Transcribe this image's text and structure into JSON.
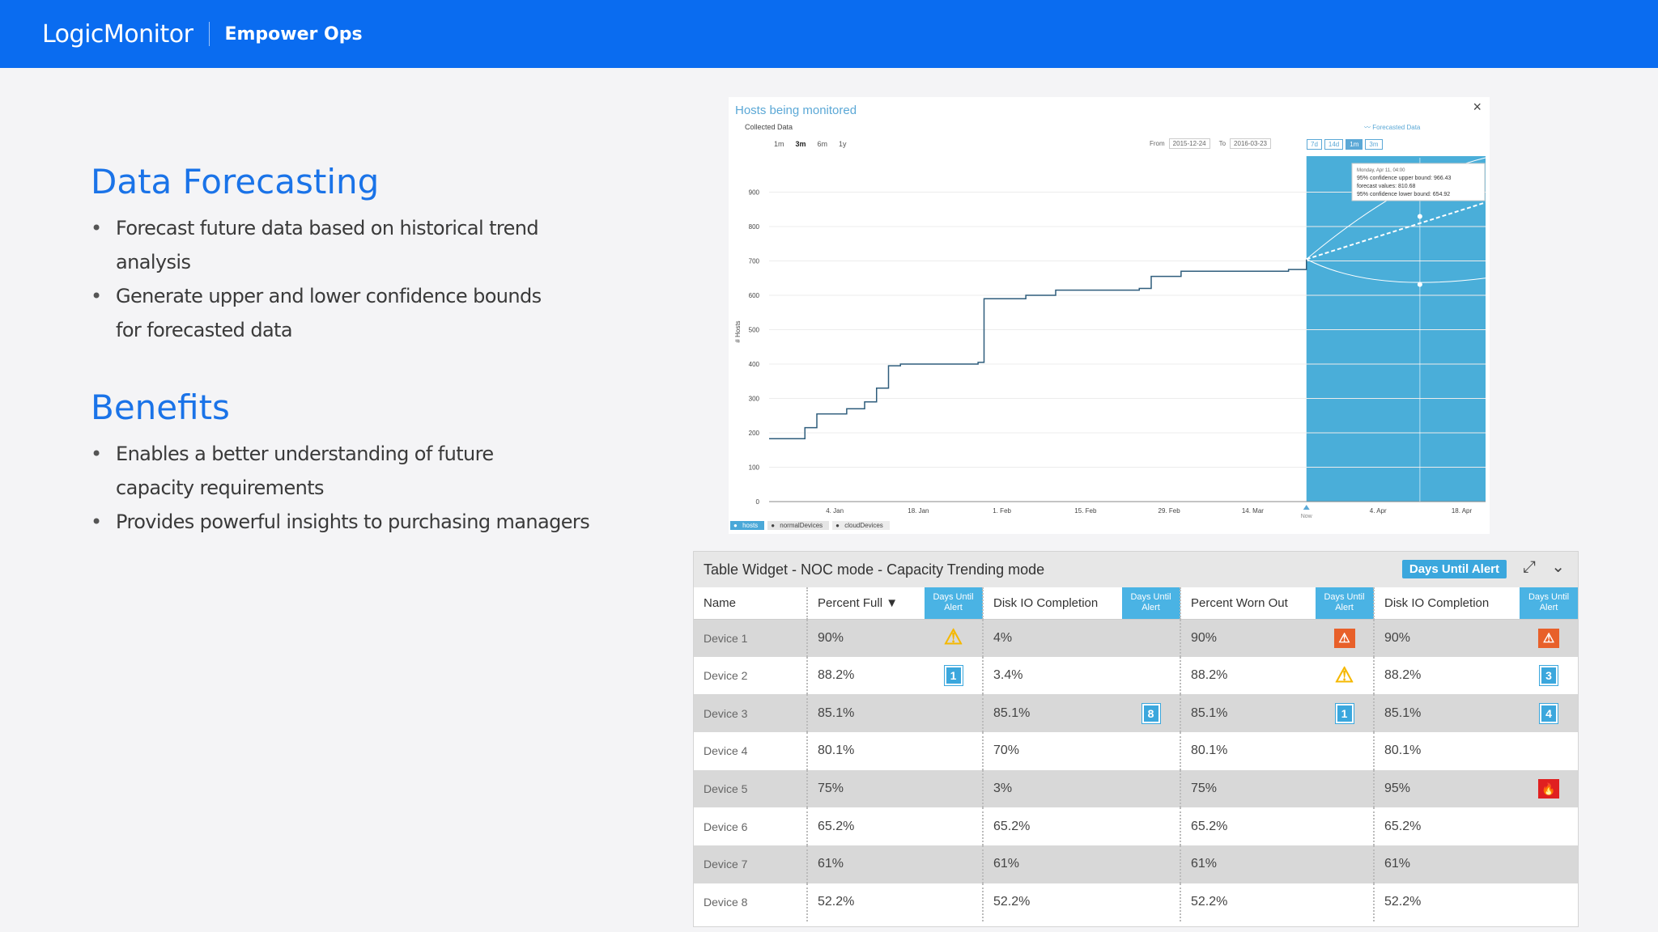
{
  "header": {
    "logo": "LogicMonitor",
    "product": "Empower Ops"
  },
  "left": {
    "section1": {
      "title": "Data Forecasting",
      "bullets": [
        "Forecast future data based on historical trend analysis",
        "Generate upper and lower confidence bounds for forecasted data"
      ]
    },
    "section2": {
      "title": "Benefits",
      "bullets": [
        "Enables a better understanding of future capacity requirements",
        "Provides powerful insights to purchasing managers"
      ]
    }
  },
  "chart_panel": {
    "title": "Hosts being monitored",
    "subtitle": "Collected Data",
    "forecast_label": "Forecasted Data",
    "close_glyph": "×",
    "ranges": [
      "1m",
      "3m",
      "6m",
      "1y"
    ],
    "from_label": "From",
    "from_value": "2015-12-24",
    "to_label": "To",
    "to_value": "2016-03-23",
    "zoom": [
      "7d",
      "14d",
      "1m",
      "3m"
    ],
    "legend": [
      "hosts",
      "normalDevices",
      "cloudDevices"
    ],
    "colors": {
      "line": "#2f5d7c",
      "forecast_bg": "#4aaed9",
      "accent": "#5ba8d6"
    }
  },
  "chart_data": {
    "type": "line",
    "ylabel": "# Hosts",
    "ylim": [
      0,
      1000
    ],
    "yticks": [
      0,
      100,
      200,
      300,
      400,
      500,
      600,
      700,
      800,
      900
    ],
    "xticks": [
      "4. Jan",
      "18. Jan",
      "1. Feb",
      "15. Feb",
      "29. Feb",
      "14. Mar",
      "4. Apr",
      "18. Apr"
    ],
    "now_label": "Now",
    "series": [
      {
        "name": "hosts",
        "x": [
          "2015-12-24",
          "2015-12-30",
          "2016-01-01",
          "2016-01-06",
          "2016-01-09",
          "2016-01-11",
          "2016-01-13",
          "2016-01-15",
          "2016-01-28",
          "2016-01-29",
          "2016-02-05",
          "2016-02-10",
          "2016-02-24",
          "2016-02-26",
          "2016-03-02",
          "2016-03-20",
          "2016-03-23"
        ],
        "values": [
          183,
          215,
          255,
          270,
          290,
          330,
          395,
          400,
          405,
          590,
          600,
          615,
          620,
          655,
          670,
          675,
          705
        ]
      }
    ],
    "forecast": {
      "start": "2016-03-23",
      "end": "2016-04-22",
      "forecast_values": [
        705,
        810.68,
        870
      ],
      "upper_bound": [
        705,
        966.43,
        1000
      ],
      "lower_bound": [
        705,
        654.92,
        650
      ]
    },
    "tooltip": {
      "date": "Monday, Apr 11, 04:00",
      "upper_label": "95% confidence upper bound:",
      "upper_value": "966.43",
      "forecast_label": "forecast values:",
      "forecast_value": "810.68",
      "lower_label": "95% confidence lower bound:",
      "lower_value": "654.92"
    }
  },
  "table_widget": {
    "title": "Table Widget - NOC mode - Capacity Trending mode",
    "badge": "Days Until Alert",
    "columns": [
      "Name",
      "Percent Full",
      "Days Until Alert",
      "Disk IO Completion",
      "Days Until Alert",
      "Percent Worn Out",
      "Days Until Alert",
      "Disk IO Completion",
      "Days Until Alert"
    ],
    "rows": [
      {
        "name": "Device 1",
        "c1": "90%",
        "i1": "warn-y",
        "c2": "4%",
        "i2": "",
        "c3": "90%",
        "i3": "warn-o",
        "c4": "90%",
        "i4": "warn-o"
      },
      {
        "name": "Device 2",
        "c1": "88.2%",
        "i1": "1",
        "c2": "3.4%",
        "i2": "",
        "c3": "88.2%",
        "i3": "warn-y",
        "c4": "88.2%",
        "i4": "3"
      },
      {
        "name": "Device 3",
        "c1": "85.1%",
        "i1": "",
        "c2": "85.1%",
        "i2": "8",
        "c3": "85.1%",
        "i3": "1",
        "c4": "85.1%",
        "i4": "4"
      },
      {
        "name": "Device 4",
        "c1": "80.1%",
        "i1": "",
        "c2": "70%",
        "i2": "",
        "c3": "80.1%",
        "i3": "",
        "c4": "80.1%",
        "i4": ""
      },
      {
        "name": "Device 5",
        "c1": "75%",
        "i1": "",
        "c2": "3%",
        "i2": "",
        "c3": "75%",
        "i3": "",
        "c4": "95%",
        "i4": "fire"
      },
      {
        "name": "Device 6",
        "c1": "65.2%",
        "i1": "",
        "c2": "65.2%",
        "i2": "",
        "c3": "65.2%",
        "i3": "",
        "c4": "65.2%",
        "i4": ""
      },
      {
        "name": "Device 7",
        "c1": "61%",
        "i1": "",
        "c2": "61%",
        "i2": "",
        "c3": "61%",
        "i3": "",
        "c4": "61%",
        "i4": ""
      },
      {
        "name": "Device 8",
        "c1": "52.2%",
        "i1": "",
        "c2": "52.2%",
        "i2": "",
        "c3": "52.2%",
        "i3": "",
        "c4": "52.2%",
        "i4": ""
      }
    ]
  }
}
